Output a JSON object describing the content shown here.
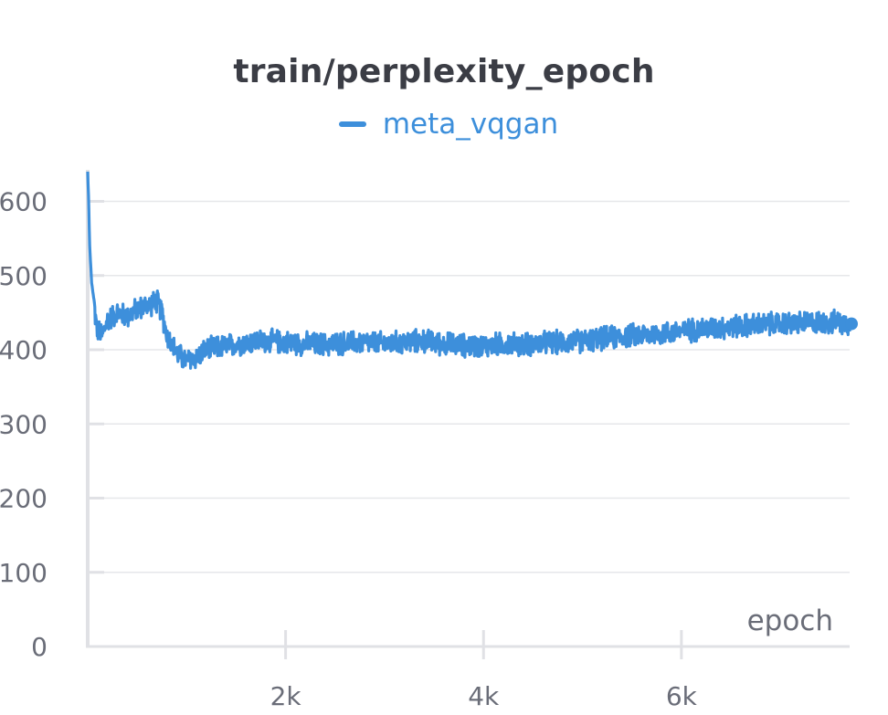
{
  "chart_data": {
    "type": "line",
    "title": "train/perplexity_epoch",
    "xlabel": "epoch",
    "ylabel": "",
    "xlim": [
      0,
      7700
    ],
    "ylim": [
      0,
      640
    ],
    "yticks": [
      0,
      100,
      200,
      300,
      400,
      500,
      600
    ],
    "ytick_labels": [
      "0",
      "100",
      "200",
      "300",
      "400",
      "500",
      "600"
    ],
    "xticks": [
      2000,
      4000,
      6000
    ],
    "xtick_labels": [
      "2k",
      "4k",
      "6k"
    ],
    "grid": true,
    "legend_position": "top-center",
    "series": [
      {
        "name": "meta_vqgan",
        "color": "#3d8fdb",
        "x": [
          0,
          10,
          20,
          40,
          60,
          80,
          100,
          150,
          200,
          300,
          400,
          500,
          600,
          700,
          750,
          800,
          900,
          1000,
          1100,
          1200,
          1400,
          1600,
          1800,
          2000,
          2200,
          2400,
          2600,
          2800,
          3000,
          3200,
          3400,
          3600,
          3800,
          4000,
          4200,
          4400,
          4600,
          4800,
          5000,
          5200,
          5400,
          5600,
          5800,
          6000,
          6200,
          6400,
          6600,
          6800,
          7000,
          7200,
          7400,
          7600,
          7700
        ],
        "values": [
          640,
          600,
          540,
          490,
          470,
          440,
          425,
          420,
          440,
          450,
          445,
          455,
          460,
          465,
          450,
          420,
          395,
          385,
          390,
          400,
          405,
          410,
          412,
          410,
          408,
          407,
          409,
          410,
          408,
          410,
          412,
          408,
          406,
          405,
          408,
          407,
          409,
          410,
          412,
          415,
          418,
          420,
          422,
          425,
          428,
          430,
          432,
          434,
          435,
          436,
          437,
          437,
          435
        ],
        "noise_amplitude": 14
      }
    ]
  },
  "legend": {
    "label": "meta_vqgan"
  }
}
